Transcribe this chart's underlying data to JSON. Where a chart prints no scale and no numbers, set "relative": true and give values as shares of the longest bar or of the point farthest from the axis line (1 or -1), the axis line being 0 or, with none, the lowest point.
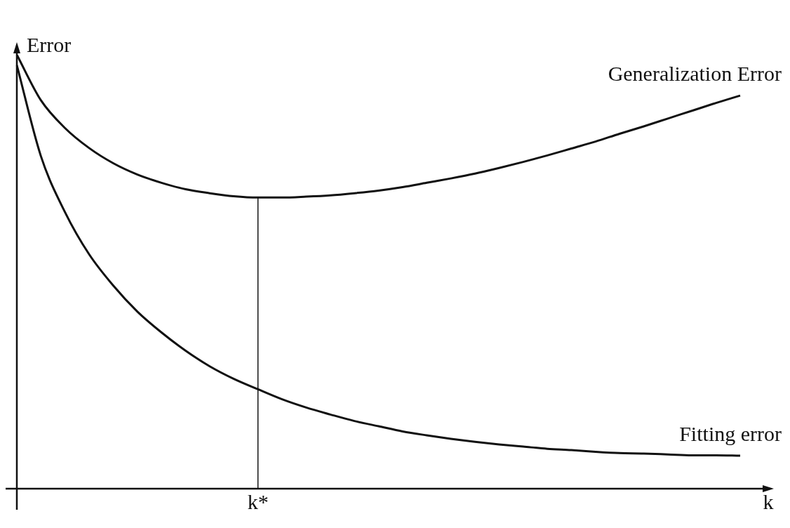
{
  "chart_data": {
    "type": "line",
    "relative": true,
    "xlabel": "k",
    "ylabel": "Error",
    "categories": [
      null,
      null,
      null,
      null,
      null,
      null,
      null,
      null,
      null,
      null,
      null,
      null,
      null,
      null,
      null,
      null,
      null,
      null,
      null,
      null,
      null,
      null,
      null,
      null,
      null,
      null,
      null,
      null,
      null,
      null,
      null
    ],
    "series": [
      {
        "name": "Generalization Error",
        "color": "#111111",
        "values": [
          1.0,
          0.895,
          0.831,
          0.785,
          0.75,
          0.724,
          0.705,
          0.69,
          0.681,
          0.674,
          0.671,
          0.671,
          0.673,
          0.676,
          0.681,
          0.687,
          0.695,
          0.705,
          0.715,
          0.726,
          0.739,
          0.753,
          0.768,
          0.784,
          0.8,
          0.818,
          0.835,
          0.853,
          0.871,
          0.889,
          0.906
        ]
      },
      {
        "name": "Fitting error",
        "color": "#111111",
        "values": [
          0.976,
          0.766,
          0.637,
          0.54,
          0.468,
          0.408,
          0.36,
          0.318,
          0.282,
          0.253,
          0.229,
          0.206,
          0.187,
          0.171,
          0.156,
          0.144,
          0.132,
          0.123,
          0.115,
          0.108,
          0.102,
          0.097,
          0.092,
          0.089,
          0.085,
          0.082,
          0.081,
          0.079,
          0.077,
          0.077,
          0.076
        ]
      }
    ],
    "ref_lines": [
      {
        "axis": "x",
        "label": "k*",
        "color": "#111111"
      }
    ],
    "grid": false,
    "legend": false,
    "marker": "none",
    "line_style": "solid"
  }
}
